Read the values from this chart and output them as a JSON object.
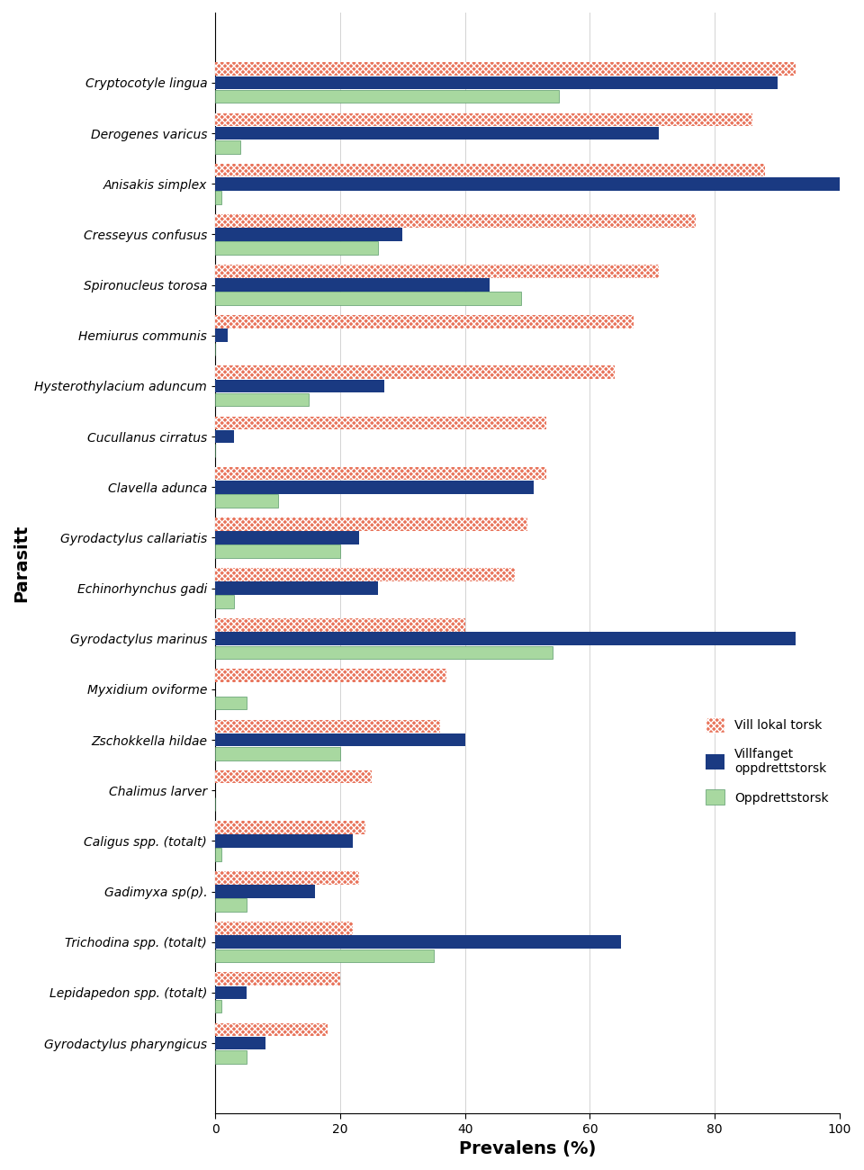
{
  "parasites": [
    "Cryptocotyle lingua",
    "Derogenes varicus",
    "Anisakis simplex",
    "Cresseyus confusus",
    "Spironucleus torosa",
    "Hemiurus communis",
    "Hysterothylacium aduncum",
    "Cucullanus cirratus",
    "Clavella adunca",
    "Gyrodactylus callariatis",
    "Echinorhynchus gadi",
    "Gyrodactylus marinus",
    "Myxidium oviforme",
    "Zschokkella hildae",
    "Chalimus larver",
    "Caligus spp. (totalt)",
    "Gadimyxa sp(p).",
    "Trichodina spp. (totalt)",
    "Lepidapedon spp. (totalt)",
    "Gyrodactylus pharyngicus"
  ],
  "vill_lokal_torsk": [
    93,
    86,
    88,
    77,
    71,
    67,
    64,
    53,
    53,
    50,
    48,
    40,
    37,
    36,
    25,
    24,
    23,
    22,
    20,
    18
  ],
  "villfanget_oppdrettstorsk": [
    90,
    71,
    100,
    30,
    44,
    2,
    27,
    3,
    51,
    23,
    26,
    93,
    0,
    40,
    0,
    22,
    16,
    65,
    5,
    8
  ],
  "oppdrettstorsk": [
    55,
    4,
    1,
    26,
    49,
    0,
    15,
    0,
    10,
    20,
    3,
    54,
    5,
    20,
    0,
    1,
    5,
    35,
    1,
    5
  ],
  "color_vill": "#E8735A",
  "color_villfanget": "#1A3A82",
  "color_oppdrett": "#A8D8A0",
  "hatch_vill": "xxxx",
  "xlabel": "Prevalens (%)",
  "ylabel": "Parasitt",
  "xlim": [
    0,
    100
  ],
  "xticks": [
    0,
    20,
    40,
    60,
    80,
    100
  ],
  "legend_vill": "Vill lokal torsk",
  "legend_villfanget": "Villfanget\noppdrettstorsk",
  "legend_oppdrett": "Oppdrettstorsk",
  "bar_height": 0.26,
  "bar_gap": 0.01,
  "ylabel_fontsize": 14,
  "xlabel_fontsize": 14,
  "ytick_fontsize": 10,
  "legend_fontsize": 10
}
